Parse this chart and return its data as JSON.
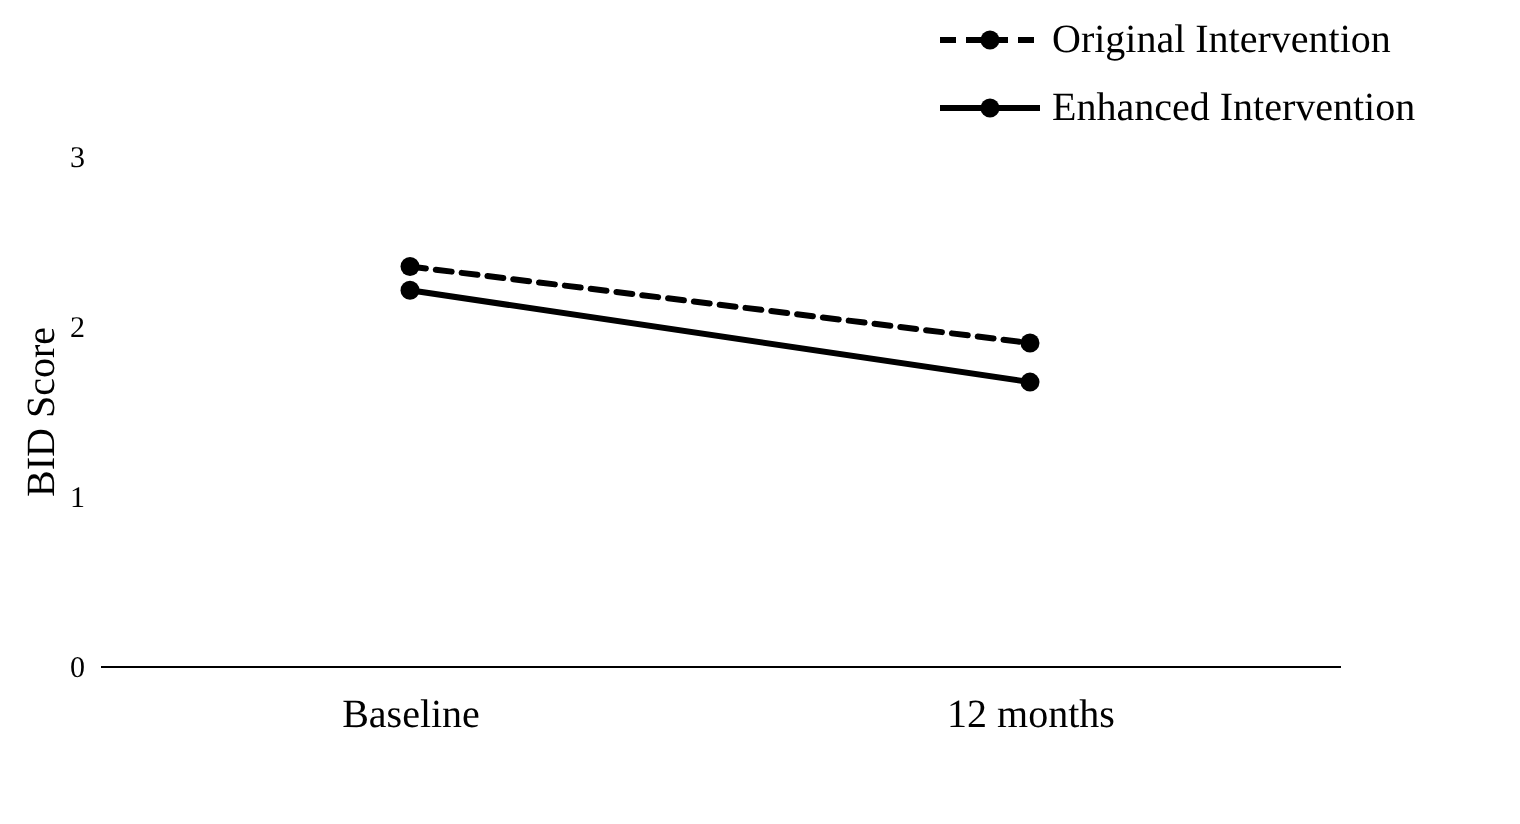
{
  "chart_data": {
    "type": "line",
    "ylabel": "BID Score",
    "categories": [
      "Baseline",
      "12 months"
    ],
    "series": [
      {
        "name": "Original Intervention",
        "color": "#000000",
        "line_style": "dashed",
        "values": [
          2.35,
          1.9
        ]
      },
      {
        "name": "Enhanced Intervention",
        "color": "#000000",
        "line_style": "solid",
        "values": [
          2.21,
          1.67
        ]
      }
    ],
    "ylim": [
      0,
      3
    ],
    "yticks": [
      0,
      1,
      2,
      3
    ],
    "grid": false,
    "legend": "top right",
    "marker": "circle"
  }
}
